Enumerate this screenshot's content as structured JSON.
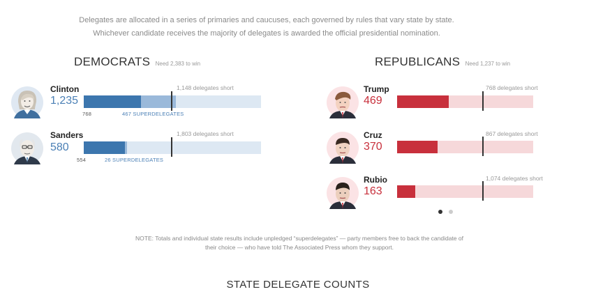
{
  "intro": {
    "line1": "Delegates are allocated in a series of primaries and caucuses, each governed by rules that vary state by state.",
    "line2": "Whichever candidate receives the majority of delegates is awarded the official presidential nomination."
  },
  "democrats": {
    "title": "DEMOCRATS",
    "need": "Need 2,383 to win",
    "accent": "#4a7fb5",
    "candidates": [
      {
        "name": "Clinton",
        "count": "1,235",
        "short": "1,148 delegates short",
        "pledged": "768",
        "super": "467 SUPERDELEGATES",
        "avatar_icon": "clinton-portrait-icon",
        "pledged_frac": 0.322,
        "super_frac": 0.196
      },
      {
        "name": "Sanders",
        "count": "580",
        "short": "1,803 delegates short",
        "pledged": "554",
        "super": "26 SUPERDELEGATES",
        "avatar_icon": "sanders-portrait-icon",
        "pledged_frac": 0.232,
        "super_frac": 0.011
      }
    ]
  },
  "republicans": {
    "title": "REPUBLICANS",
    "need": "Need 1,237 to win",
    "accent": "#c8303c",
    "candidates": [
      {
        "name": "Trump",
        "count": "469",
        "short": "768 delegates short",
        "avatar_icon": "trump-portrait-icon",
        "frac": 0.379
      },
      {
        "name": "Cruz",
        "count": "370",
        "short": "867 delegates short",
        "avatar_icon": "cruz-portrait-icon",
        "frac": 0.299
      },
      {
        "name": "Rubio",
        "count": "163",
        "short": "1,074 delegates short",
        "avatar_icon": "rubio-portrait-icon",
        "frac": 0.132
      }
    ]
  },
  "pager": {
    "dot_count": 2,
    "active_index": 0
  },
  "note": {
    "line1": "NOTE: Totals and individual state results include unpledged “superdelegates” — party members free to back the candidate of",
    "line2": "their choice — who have told The Associated Press whom they support."
  },
  "section_title": "STATE DELEGATE COUNTS"
}
